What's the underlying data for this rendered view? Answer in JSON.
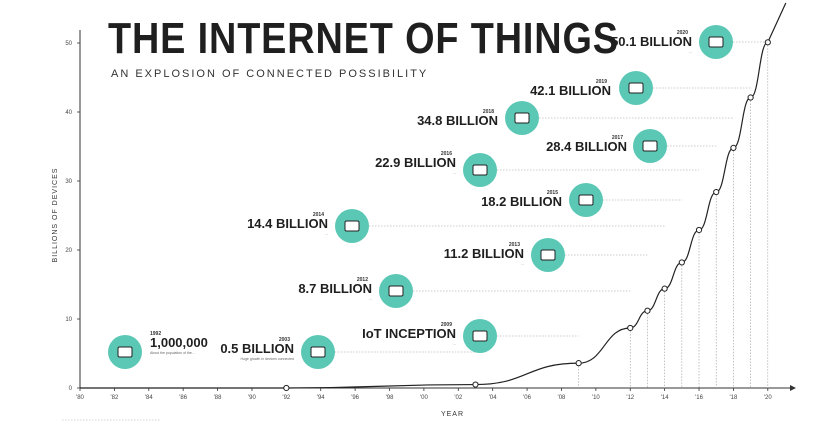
{
  "header": {
    "title": "THE INTERNET OF THINGS",
    "subtitle": "AN EXPLOSION OF CONNECTED POSSIBILITY"
  },
  "colors": {
    "teal": "#5bc8b5",
    "line": "#222222",
    "dots": "#999999"
  },
  "chart_data": {
    "type": "line",
    "xlabel": "YEAR",
    "ylabel": "BILLIONS OF DEVICES",
    "xlim": [
      1980,
      2021
    ],
    "ylim": [
      0,
      50
    ],
    "x_ticks": [
      "'80",
      "'82",
      "'84",
      "'86",
      "'88",
      "'90",
      "'92",
      "'94",
      "'96",
      "'98",
      "'00",
      "'02",
      "'04",
      "'06",
      "'08",
      "'10",
      "'12",
      "'14",
      "'16",
      "'18",
      "'20"
    ],
    "y_ticks": [
      0,
      10,
      20,
      30,
      40,
      50
    ],
    "x": [
      1980,
      1992,
      2003,
      2009,
      2012,
      2013,
      2014,
      2015,
      2016,
      2017,
      2018,
      2019,
      2020
    ],
    "values": [
      0,
      0.001,
      0.5,
      3.6,
      8.7,
      11.2,
      14.4,
      18.2,
      22.9,
      28.4,
      34.8,
      42.1,
      50.1
    ],
    "annotations": [
      {
        "year": "1992",
        "value": "1,000,000",
        "icon": "computer-icon",
        "note": "About the population of the...",
        "side": "right"
      },
      {
        "year": "2003",
        "value": "0.5 BILLION",
        "icon": "laptop-icon",
        "note": "Huge growth in devices connected",
        "side": "left"
      },
      {
        "year": "2009",
        "value": "IoT INCEPTION",
        "icon": "lightbulb-icon",
        "note": "...",
        "side": "left"
      },
      {
        "year": "2012",
        "value": "8.7 BILLION",
        "icon": "watch-phone-icon",
        "note": "...",
        "side": "left"
      },
      {
        "year": "2013",
        "value": "11.2 BILLION",
        "icon": "oven-icon",
        "note": "...",
        "side": "left"
      },
      {
        "year": "2014",
        "value": "14.4 BILLION",
        "icon": "wind-turbine-icon",
        "note": "...",
        "side": "left"
      },
      {
        "year": "2015",
        "value": "18.2 BILLION",
        "icon": "toothbrush-icon",
        "note": "",
        "side": "left"
      },
      {
        "year": "2016",
        "value": "22.9 BILLION",
        "icon": "traffic-light-icon",
        "note": "...",
        "side": "left"
      },
      {
        "year": "2017",
        "value": "28.4 BILLION",
        "icon": "air-conditioner-icon",
        "note": "",
        "side": "left"
      },
      {
        "year": "2018",
        "value": "34.8 BILLION",
        "icon": "thermostat-icon",
        "note": "",
        "side": "left"
      },
      {
        "year": "2019",
        "value": "42.1 BILLION",
        "icon": "outlet-icon",
        "note": "",
        "side": "left"
      },
      {
        "year": "2020",
        "value": "50.1 BILLION",
        "icon": "door-handle-icon",
        "note": "...",
        "side": "left"
      }
    ]
  }
}
